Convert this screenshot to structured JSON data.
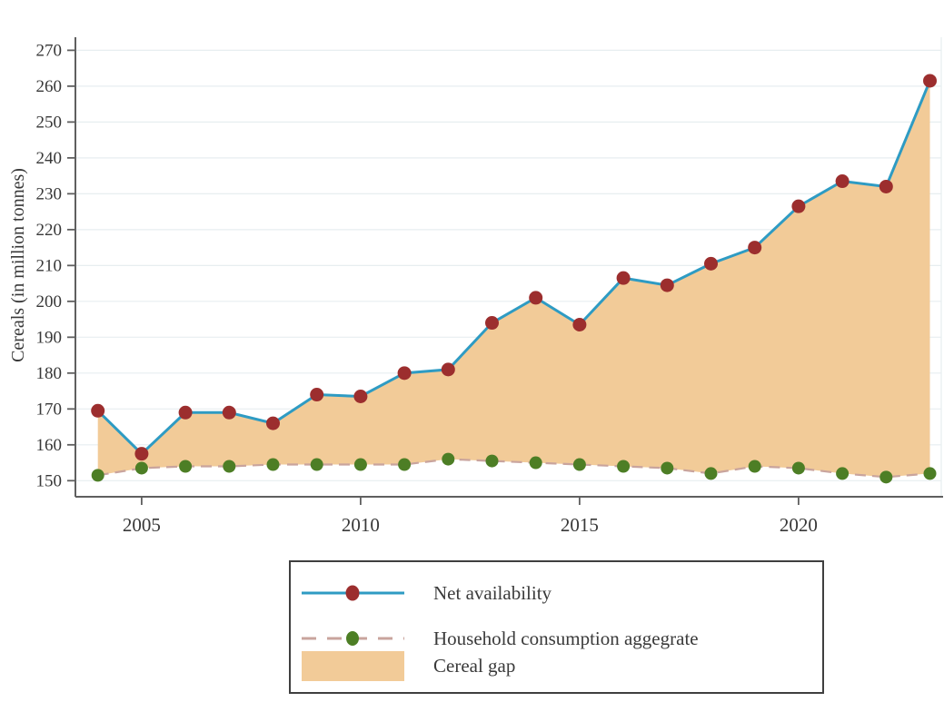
{
  "page": {
    "background": "#ffffff"
  },
  "chart_data": {
    "type": "line",
    "title": "",
    "xlabel": "",
    "ylabel": "Cereals (in million tonnes)",
    "x": [
      2004,
      2005,
      2006,
      2007,
      2008,
      2009,
      2010,
      2011,
      2012,
      2013,
      2014,
      2015,
      2016,
      2017,
      2018,
      2019,
      2020,
      2021,
      2022,
      2023
    ],
    "x_ticks": [
      2005,
      2010,
      2015,
      2020
    ],
    "y_ticks": [
      150,
      160,
      170,
      180,
      190,
      200,
      210,
      220,
      230,
      240,
      250,
      260,
      270
    ],
    "ylim": [
      145.5,
      276
    ],
    "grid": true,
    "legend_position": "bottom-center",
    "series": [
      {
        "name": "Net availability",
        "line_style": "solid",
        "line_color": "#2e9bc3",
        "marker_color": "#9c2e2e",
        "values": [
          169.5,
          157.5,
          169,
          169,
          166,
          174,
          173.5,
          180,
          181,
          194,
          201,
          193.5,
          206.5,
          204.5,
          210.5,
          215,
          226.5,
          233.5,
          232,
          261.5
        ]
      },
      {
        "name": "Household consumption aggegrate",
        "line_style": "dashed",
        "line_color": "#c9a49d",
        "marker_color": "#4d7e25",
        "values": [
          151.5,
          153.5,
          154,
          154,
          154.5,
          154.5,
          154.5,
          154.5,
          156,
          155.5,
          155,
          154.5,
          154,
          153.5,
          152,
          154,
          153.5,
          152,
          151,
          152
        ]
      }
    ],
    "gap": {
      "name": "Cereal gap",
      "fill_color": "#f2cb98",
      "between": [
        0,
        1
      ]
    }
  },
  "legend": {
    "items": [
      {
        "label": "Net availability"
      },
      {
        "label": "Household consumption aggegrate"
      },
      {
        "label": "Cereal gap"
      }
    ]
  },
  "axis": {
    "axis_color": "#5f5f5f",
    "tick_color": "#5f5f5f",
    "grid_color": "#e7eef0",
    "label_color": "#383838"
  }
}
